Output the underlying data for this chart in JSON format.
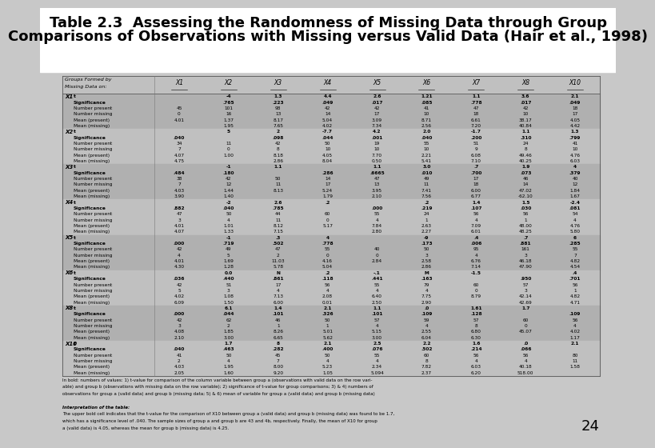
{
  "title_line1": "Table 2.3  Assessing the Randomness of Missing Data through Group",
  "title_line2": "Comparisons of Observations with Missing versus Valid Data (Hair et al., 1998)",
  "title_fontsize": 13,
  "background_color": "#d0d0d0",
  "table_bg": "#cccccc",
  "page_number": "24",
  "footnote_line1": "In bold: numbers of values: 1) t-value for comparison of the column variable between group a (observations with valid data on the row vari-",
  "footnote_line2": "able) and group b (observations with missing data on the row variable); 2) significance of t-value for group comparisons; 3) & 4) numbers of",
  "footnote_line3": "observations for group a (valid data) and group b (missing data; 5) & 6) mean of variable for group a (valid data) and group b (missing data)",
  "footnote_line4": "Interpretation of the table:",
  "footnote_line5": "The upper bold cell indicates that the t-value for the comparison of X10 between group a (valid data) and group b (missing data) was found to be 1.7,",
  "footnote_line6": "which has a significance level of .040. The sample sizes of group a and group b are 43 and 4b, respectively. Finally, the mean of X10 for group",
  "footnote_line7": "a (valid data) is 4.05, whereas the mean for group b (missing data) is 4.25.",
  "header_col1": "Groups Formed by",
  "header_col2": "Missing Data on:",
  "col_labels": [
    "X1",
    "X2",
    "X3",
    "X4",
    "X5",
    "X6",
    "X7",
    "X8",
    "X10"
  ],
  "rows": [
    [
      "X1",
      "t",
      "",
      "-4",
      "1.3",
      "4.4",
      "2.6",
      "1.21",
      "1.1",
      "3.6",
      "2.1"
    ],
    [
      "",
      "Significance",
      "",
      ".765",
      ".223",
      ".049",
      ".017",
      ".085",
      ".778",
      ".017",
      ".049"
    ],
    [
      "",
      "Number present",
      "45",
      "101",
      "98",
      "42",
      "42",
      "41",
      "47",
      "42",
      "18"
    ],
    [
      "",
      "Number missing",
      "0",
      "16",
      "13",
      "14",
      "17",
      "10",
      "18",
      "10",
      "17"
    ],
    [
      "",
      "Mean (present)",
      "4.01",
      "1.37",
      "8.17",
      "5.04",
      "3.09",
      "8.71",
      "6.61",
      "38.17",
      "4.05"
    ],
    [
      "",
      "Mean (missing)",
      "",
      "1.95",
      "7.65",
      "4.02",
      "7.34",
      "2.56",
      "7.20",
      "40.84",
      "4.42"
    ],
    [
      "X2",
      "t",
      "",
      "5",
      "2",
      "-7.7",
      "4.2",
      "2.0",
      "-1.7",
      "1.1",
      "1.3"
    ],
    [
      "",
      "Significance",
      ".040",
      "",
      ".098",
      ".044",
      ".001",
      ".040",
      ".200",
      ".310",
      ".799"
    ],
    [
      "",
      "Number present",
      "34",
      "11",
      "42",
      "50",
      "19",
      "55",
      "51",
      "24",
      "41"
    ],
    [
      "",
      "Number missing",
      "7",
      "0",
      "8",
      "10",
      "10",
      "10",
      "9",
      "8",
      "10"
    ],
    [
      "",
      "Mean (present)",
      "4.07",
      "1.00",
      "8.18",
      "4.05",
      "7.70",
      "2.21",
      "6.08",
      "49.46",
      "4.76"
    ],
    [
      "",
      "Mean (missing)",
      "4.75",
      "",
      "2.86",
      "8.04",
      "0.50",
      "5.41",
      "7.10",
      "40.25",
      "6.03"
    ],
    [
      "X3",
      "t",
      "",
      "-1",
      "1.1",
      "",
      "1.1",
      "3.0",
      ".7",
      "1.9",
      "4"
    ],
    [
      "",
      "Significance",
      ".484",
      ".180",
      "",
      ".286",
      ".6665",
      ".010",
      ".700",
      ".073",
      ".379"
    ],
    [
      "",
      "Number present",
      "38",
      "42",
      "50",
      "14",
      "47",
      "49",
      "17",
      "46",
      "40"
    ],
    [
      "",
      "Number missing",
      "7",
      "12",
      "11",
      "17",
      "13",
      "11",
      "18",
      "14",
      "12"
    ],
    [
      "",
      "Mean (present)",
      "4.03",
      "1.44",
      "8.13",
      "5.24",
      "3.95",
      "7.41",
      "6.00",
      "47.02",
      "1.84"
    ],
    [
      "",
      "Mean (missing)",
      "3.90",
      "1.40",
      "",
      "1.79",
      "2.10",
      "7.56",
      "6.77",
      "-62.10",
      "1.67"
    ],
    [
      "X4",
      "t",
      "",
      "-2",
      "2.6",
      ".2",
      "",
      ".2",
      "1.4",
      "1.5",
      "-2.4"
    ],
    [
      "",
      "Significance",
      ".882",
      ".040",
      ".785",
      "",
      ".000",
      ".219",
      ".107",
      ".030",
      ".081"
    ],
    [
      "",
      "Number present",
      "47",
      "50",
      "44",
      "60",
      "55",
      "24",
      "56",
      "56",
      "54"
    ],
    [
      "",
      "Number missing",
      "3",
      "4",
      "11",
      "0",
      "4",
      "1",
      "4",
      "1",
      "4"
    ],
    [
      "",
      "Mean (present)",
      "4.01",
      "1.01",
      "8.12",
      "5.17",
      "7.84",
      "2.63",
      "7.09",
      "48.00",
      "4.76"
    ],
    [
      "",
      "Mean (missing)",
      "4.07",
      "1.33",
      "7.15",
      "",
      "2.80",
      "2.27",
      "6.01",
      "48.25",
      "5.80"
    ],
    [
      "X5",
      "t",
      "",
      "-1",
      ".3",
      "4",
      "",
      "-9",
      ".4",
      ".7",
      "6"
    ],
    [
      "",
      "Significance",
      ".000",
      ".719",
      ".502",
      ".778",
      "",
      ".173",
      ".006",
      ".881",
      ".285"
    ],
    [
      "",
      "Number present",
      "42",
      "49",
      "47",
      "55",
      "40",
      "50",
      "95",
      "161",
      "55"
    ],
    [
      "",
      "Number missing",
      "4",
      "5",
      "2",
      "0",
      "0",
      "3",
      "4",
      "3",
      "7"
    ],
    [
      "",
      "Mean (present)",
      "4.01",
      "1.69",
      "11.03",
      "4.16",
      "2.84",
      "2.58",
      "6.76",
      "46.18",
      "4.82"
    ],
    [
      "",
      "Mean (missing)",
      "4.30",
      "1.28",
      "5.78",
      "5.04",
      "",
      "2.86",
      "7.14",
      "47.90",
      "4.54"
    ],
    [
      "X6",
      "t",
      "",
      "0.0",
      "N",
      ".2",
      "-.1",
      "M",
      "-1.5",
      "",
      ".4"
    ],
    [
      "",
      "Significance",
      ".036",
      ".440",
      ".861",
      ".118",
      ".441",
      ".163",
      "",
      ".950",
      ".701"
    ],
    [
      "",
      "Number present",
      "42",
      "51",
      "17",
      "56",
      "55",
      "79",
      "60",
      "57",
      "56"
    ],
    [
      "",
      "Number missing",
      "5",
      "3",
      "4",
      "4",
      "4",
      "4",
      "0",
      "3",
      "1"
    ],
    [
      "",
      "Mean (present)",
      "4.02",
      "1.08",
      "7.13",
      "2.08",
      "6.40",
      "7.75",
      "8.79",
      "42.14",
      "4.82"
    ],
    [
      "",
      "Mean (missing)",
      "6.09",
      "1.50",
      "6.00",
      "0.01",
      "2.50",
      "2.90",
      "",
      "42.69",
      "4.71"
    ],
    [
      "X8",
      "t",
      "",
      "6.1",
      "1.4",
      "2.1",
      "1.1",
      ".0",
      "1.61",
      "1.7",
      ""
    ],
    [
      "",
      "Significance",
      ".000",
      ".044",
      ".101",
      ".326",
      ".101",
      ".109",
      ".128",
      "",
      ".109"
    ],
    [
      "",
      "Number present",
      "42",
      "62",
      "46",
      "50",
      "57",
      "59",
      "57",
      "60",
      "56"
    ],
    [
      "",
      "Number missing",
      "3",
      "2",
      "1",
      "1",
      "4",
      "4",
      "8",
      "0",
      "4"
    ],
    [
      "",
      "Mean (present)",
      "4.08",
      "1.85",
      "8.26",
      "5.01",
      "5.15",
      "2.55",
      "6.80",
      "45.07",
      "4.02"
    ],
    [
      "",
      "Mean (missing)",
      "2.10",
      "3.00",
      "6.65",
      "5.62",
      "3.00",
      "6.04",
      "6.30",
      "",
      "1.17"
    ],
    [
      "X10",
      "t",
      "",
      "1.7",
      "8",
      "2.1",
      "2.5",
      "2.2",
      "1.6",
      ".0",
      "2.1"
    ],
    [
      "",
      "Significance",
      ".040",
      ".463",
      ".282",
      ".400",
      ".076",
      ".502",
      ".214",
      ".066",
      ""
    ],
    [
      "",
      "Number present",
      "41",
      "50",
      "45",
      "50",
      "55",
      "60",
      "56",
      "56",
      "80"
    ],
    [
      "",
      "Number missing",
      "2",
      "4",
      "7",
      "4",
      "4",
      "8",
      "4",
      "4",
      "11"
    ],
    [
      "",
      "Mean (present)",
      "4.03",
      "1.95",
      "8.00",
      "5.23",
      "2.34",
      "7.82",
      "6.03",
      "40.18",
      "1.58"
    ],
    [
      "",
      "Mean (missing)",
      "2.05",
      "1.60",
      "9.20",
      "1.05",
      "5.094",
      "2.37",
      "6.20",
      "518.00",
      ""
    ]
  ]
}
